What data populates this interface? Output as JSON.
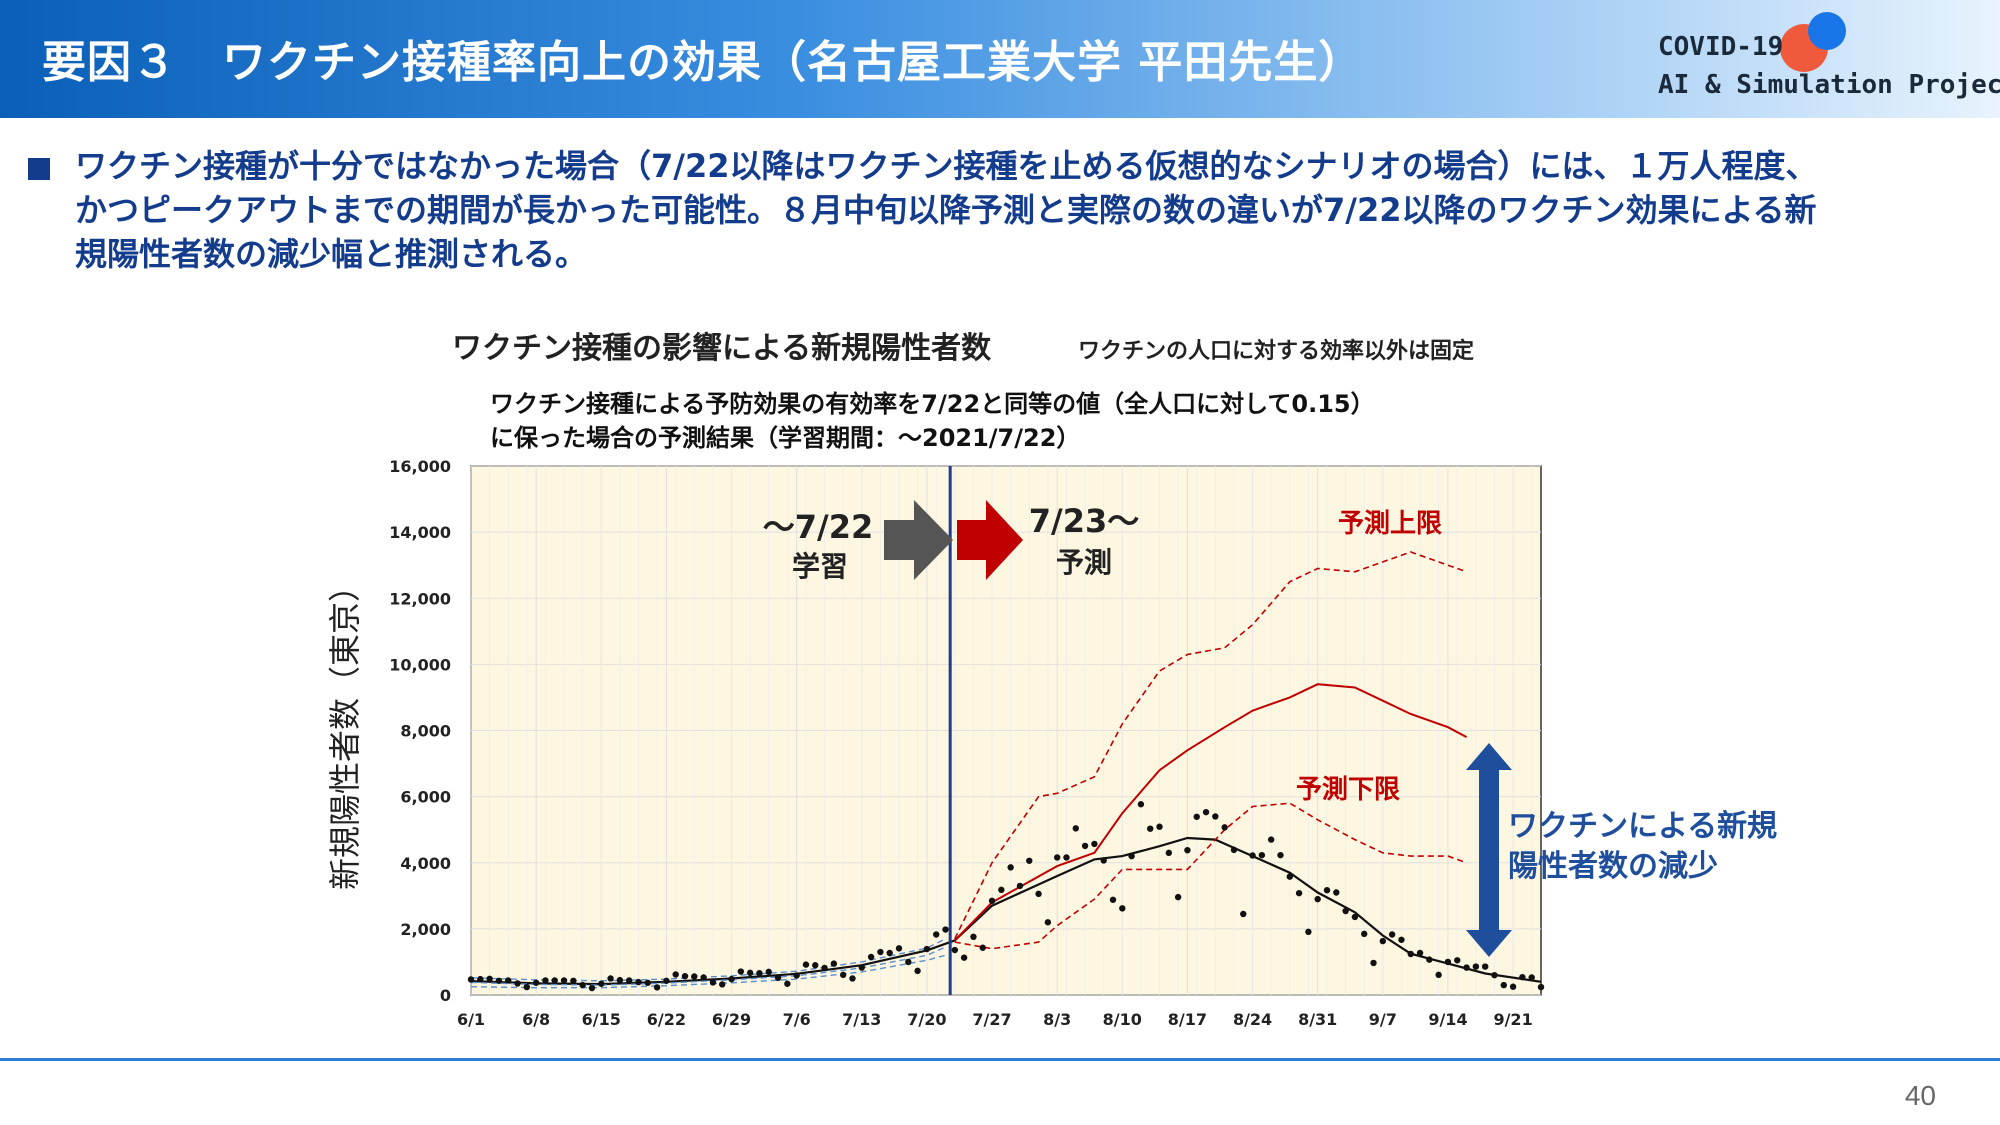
{
  "header": {
    "title": "要因３　ワクチン接種率向上の効果（名古屋工業大学 平田先生）",
    "brand_line1": "COVID-19",
    "brand_line2": "AI & Simulation Project"
  },
  "description": {
    "line1": "ワクチン接種が十分ではなかった場合（7/22以降はワクチン接種を止める仮想的なシナリオの場合）には、１万人程度、",
    "line2": "かつピークアウトまでの期間が長かった可能性。８月中旬以降予測と実際の数の違いが7/22以降のワクチン効果による新",
    "line3": "規陽性者数の減少幅と推測される。"
  },
  "page_number": "40",
  "colors": {
    "header_blue": "#0a5fb8",
    "text_navy": "#143c8c",
    "forecast_red": "#c00000",
    "plot_bg": "#fdf6e1",
    "divider_navy": "#1f3b8c",
    "learn_arrow_gray": "#555555"
  },
  "chart_data": {
    "type": "line",
    "title_main": "ワクチン接種の影響による新規陽性者数",
    "title_side": "ワクチンの人口に対する効率以外は固定",
    "subtitle1": "ワクチン接種による予防効果の有効率を7/22と同等の値（全人口に対して0.15）",
    "subtitle2": "に保った場合の予測結果（学習期間：～2021/7/22）",
    "ylabel": "新規陽性者数（東京）",
    "ylim": [
      0,
      16000
    ],
    "y_ticks": [
      "0",
      "2,000",
      "4,000",
      "6,000",
      "8,000",
      "10,000",
      "12,000",
      "14,000",
      "16,000"
    ],
    "x_tick_labels": [
      "6/1",
      "6/8",
      "6/15",
      "6/22",
      "6/29",
      "7/6",
      "7/13",
      "7/20",
      "7/27",
      "8/3",
      "8/10",
      "8/17",
      "8/24",
      "8/31",
      "9/7",
      "9/14",
      "9/21"
    ],
    "x_start": "2021-06-01",
    "x_end": "2021-09-24",
    "split_date": "2021-07-22",
    "annotations": {
      "learn_label1": "～7/22",
      "learn_label2": "学習",
      "predict_label1": "7/23～",
      "predict_label2": "予測",
      "upper_label": "予測上限",
      "lower_label": "予測下限",
      "effect_label1": "ワクチンによる新規",
      "effect_label2": "陽性者数の減少"
    },
    "series": [
      {
        "name": "",
        "style": "black-solid",
        "points": [
          [
            "06-01",
            420
          ],
          [
            "06-08",
            350
          ],
          [
            "06-15",
            330
          ],
          [
            "06-22",
            400
          ],
          [
            "06-29",
            500
          ],
          [
            "07-06",
            640
          ],
          [
            "07-13",
            900
          ],
          [
            "07-20",
            1350
          ],
          [
            "07-23",
            1650
          ],
          [
            "07-27",
            2700
          ],
          [
            "08-03",
            3600
          ],
          [
            "08-07",
            4100
          ],
          [
            "08-10",
            4200
          ],
          [
            "08-14",
            4500
          ],
          [
            "08-17",
            4750
          ],
          [
            "08-20",
            4700
          ],
          [
            "08-24",
            4200
          ],
          [
            "08-28",
            3700
          ],
          [
            "08-31",
            3100
          ],
          [
            "09-04",
            2500
          ],
          [
            "09-07",
            1800
          ],
          [
            "09-10",
            1250
          ],
          [
            "09-14",
            950
          ],
          [
            "09-18",
            650
          ],
          [
            "09-24",
            400
          ]
        ]
      },
      {
        "name": "",
        "style": "red-solid",
        "points": [
          [
            "07-23",
            1650
          ],
          [
            "07-27",
            2800
          ],
          [
            "08-03",
            3900
          ],
          [
            "08-07",
            4300
          ],
          [
            "08-10",
            5500
          ],
          [
            "08-14",
            6800
          ],
          [
            "08-17",
            7400
          ],
          [
            "08-21",
            8100
          ],
          [
            "08-24",
            8600
          ],
          [
            "08-28",
            9000
          ],
          [
            "08-31",
            9400
          ],
          [
            "09-04",
            9300
          ],
          [
            "09-07",
            8900
          ],
          [
            "09-10",
            8500
          ],
          [
            "09-14",
            8100
          ],
          [
            "09-16",
            7800
          ]
        ]
      },
      {
        "name": "",
        "style": "red-dashed",
        "points": [
          [
            "07-23",
            1700
          ],
          [
            "07-27",
            4000
          ],
          [
            "08-01",
            6000
          ],
          [
            "08-03",
            6100
          ],
          [
            "08-07",
            6600
          ],
          [
            "08-10",
            8200
          ],
          [
            "08-14",
            9800
          ],
          [
            "08-17",
            10300
          ],
          [
            "08-21",
            10500
          ],
          [
            "08-24",
            11200
          ],
          [
            "08-28",
            12500
          ],
          [
            "08-31",
            12900
          ],
          [
            "09-04",
            12800
          ],
          [
            "09-07",
            13100
          ],
          [
            "09-10",
            13400
          ],
          [
            "09-14",
            13000
          ],
          [
            "09-16",
            12800
          ]
        ]
      },
      {
        "name": "",
        "style": "red-dashed",
        "points": [
          [
            "07-23",
            1600
          ],
          [
            "07-27",
            1400
          ],
          [
            "08-01",
            1600
          ],
          [
            "08-03",
            2100
          ],
          [
            "08-07",
            2900
          ],
          [
            "08-10",
            3800
          ],
          [
            "08-14",
            3800
          ],
          [
            "08-17",
            3800
          ],
          [
            "08-21",
            5000
          ],
          [
            "08-24",
            5700
          ],
          [
            "08-28",
            5800
          ],
          [
            "08-31",
            5300
          ],
          [
            "09-04",
            4700
          ],
          [
            "09-07",
            4300
          ],
          [
            "09-10",
            4200
          ],
          [
            "09-14",
            4200
          ],
          [
            "09-16",
            4000
          ]
        ]
      },
      {
        "name": "",
        "style": "blue-dashed",
        "points": [
          [
            "06-01",
            380
          ],
          [
            "06-08",
            320
          ],
          [
            "06-15",
            300
          ],
          [
            "06-22",
            360
          ],
          [
            "06-29",
            460
          ],
          [
            "07-06",
            580
          ],
          [
            "07-13",
            820
          ],
          [
            "07-20",
            1200
          ],
          [
            "07-22",
            1450
          ]
        ]
      },
      {
        "name": "",
        "style": "blue-dashed",
        "points": [
          [
            "06-01",
            250
          ],
          [
            "06-08",
            220
          ],
          [
            "06-15",
            220
          ],
          [
            "06-22",
            280
          ],
          [
            "06-29",
            370
          ],
          [
            "07-06",
            480
          ],
          [
            "07-13",
            700
          ],
          [
            "07-20",
            1050
          ],
          [
            "07-22",
            1200
          ]
        ]
      },
      {
        "name": "",
        "style": "blue-dashed",
        "points": [
          [
            "06-01",
            520
          ],
          [
            "06-08",
            460
          ],
          [
            "06-15",
            430
          ],
          [
            "06-22",
            480
          ],
          [
            "06-29",
            580
          ],
          [
            "07-06",
            720
          ],
          [
            "07-13",
            1000
          ],
          [
            "07-20",
            1420
          ],
          [
            "07-22",
            1700
          ]
        ]
      },
      {
        "name": "",
        "style": "dots",
        "points": [
          [
            "06-01",
            470
          ],
          [
            "06-02",
            480
          ],
          [
            "06-03",
            490
          ],
          [
            "06-04",
            430
          ],
          [
            "06-05",
            440
          ],
          [
            "06-06",
            350
          ],
          [
            "06-07",
            240
          ],
          [
            "06-08",
            370
          ],
          [
            "06-09",
            440
          ],
          [
            "06-10",
            440
          ],
          [
            "06-11",
            440
          ],
          [
            "06-12",
            430
          ],
          [
            "06-13",
            300
          ],
          [
            "06-14",
            210
          ],
          [
            "06-15",
            340
          ],
          [
            "06-16",
            500
          ],
          [
            "06-17",
            450
          ],
          [
            "06-18",
            440
          ],
          [
            "06-19",
            390
          ],
          [
            "06-20",
            370
          ],
          [
            "06-21",
            230
          ],
          [
            "06-22",
            430
          ],
          [
            "06-23",
            620
          ],
          [
            "06-24",
            570
          ],
          [
            "06-25",
            560
          ],
          [
            "06-26",
            530
          ],
          [
            "06-27",
            380
          ],
          [
            "06-28",
            320
          ],
          [
            "06-29",
            480
          ],
          [
            "06-30",
            710
          ],
          [
            "07-01",
            670
          ],
          [
            "07-02",
            660
          ],
          [
            "07-03",
            700
          ],
          [
            "07-04",
            520
          ],
          [
            "07-05",
            340
          ],
          [
            "07-06",
            590
          ],
          [
            "07-07",
            920
          ],
          [
            "07-08",
            900
          ],
          [
            "07-09",
            820
          ],
          [
            "07-10",
            950
          ],
          [
            "07-11",
            610
          ],
          [
            "07-12",
            500
          ],
          [
            "07-13",
            830
          ],
          [
            "07-14",
            1150
          ],
          [
            "07-15",
            1300
          ],
          [
            "07-16",
            1270
          ],
          [
            "07-17",
            1410
          ],
          [
            "07-18",
            1000
          ],
          [
            "07-19",
            730
          ],
          [
            "07-20",
            1390
          ],
          [
            "07-21",
            1830
          ],
          [
            "07-22",
            1980
          ],
          [
            "07-23",
            1360
          ],
          [
            "07-24",
            1130
          ],
          [
            "07-25",
            1760
          ],
          [
            "07-26",
            1430
          ],
          [
            "07-27",
            2850
          ],
          [
            "07-28",
            3180
          ],
          [
            "07-29",
            3860
          ],
          [
            "07-30",
            3300
          ],
          [
            "07-31",
            4060
          ],
          [
            "08-01",
            3060
          ],
          [
            "08-02",
            2200
          ],
          [
            "08-03",
            4160
          ],
          [
            "08-04",
            4160
          ],
          [
            "08-05",
            5040
          ],
          [
            "08-06",
            4510
          ],
          [
            "08-07",
            4570
          ],
          [
            "08-08",
            4070
          ],
          [
            "08-09",
            2880
          ],
          [
            "08-10",
            2620
          ],
          [
            "08-11",
            4200
          ],
          [
            "08-12",
            5770
          ],
          [
            "08-13",
            5030
          ],
          [
            "08-14",
            5090
          ],
          [
            "08-15",
            4300
          ],
          [
            "08-16",
            2960
          ],
          [
            "08-17",
            4380
          ],
          [
            "08-18",
            5390
          ],
          [
            "08-19",
            5530
          ],
          [
            "08-20",
            5400
          ],
          [
            "08-21",
            5070
          ],
          [
            "08-22",
            4390
          ],
          [
            "08-23",
            2450
          ],
          [
            "08-24",
            4220
          ],
          [
            "08-25",
            4230
          ],
          [
            "08-26",
            4700
          ],
          [
            "08-27",
            4230
          ],
          [
            "08-28",
            3580
          ],
          [
            "08-29",
            3080
          ],
          [
            "08-30",
            1910
          ],
          [
            "08-31",
            2900
          ],
          [
            "09-01",
            3170
          ],
          [
            "09-02",
            3100
          ],
          [
            "09-03",
            2540
          ],
          [
            "09-04",
            2360
          ],
          [
            "09-05",
            1850
          ],
          [
            "09-06",
            970
          ],
          [
            "09-07",
            1630
          ],
          [
            "09-08",
            1830
          ],
          [
            "09-09",
            1670
          ],
          [
            "09-10",
            1240
          ],
          [
            "09-11",
            1270
          ],
          [
            "09-12",
            1070
          ],
          [
            "09-13",
            610
          ],
          [
            "09-14",
            1000
          ],
          [
            "09-15",
            1050
          ],
          [
            "09-16",
            830
          ],
          [
            "09-17",
            860
          ],
          [
            "09-18",
            860
          ],
          [
            "09-19",
            600
          ],
          [
            "09-20",
            300
          ],
          [
            "09-21",
            250
          ],
          [
            "09-22",
            540
          ],
          [
            "09-23",
            530
          ],
          [
            "09-24",
            240
          ]
        ]
      }
    ]
  }
}
